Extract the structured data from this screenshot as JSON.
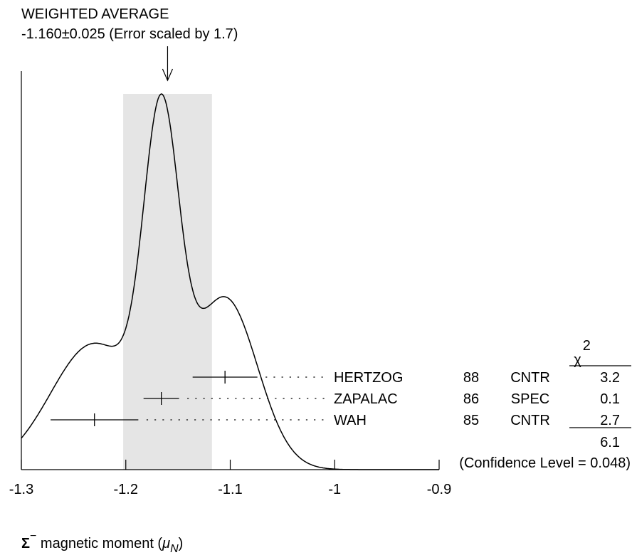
{
  "header": {
    "line1": "WEIGHTED AVERAGE",
    "line2": "-1.160±0.025 (Error scaled by 1.7)"
  },
  "chart_data": {
    "type": "ideogram",
    "xlabel": "Σ⁻ magnetic moment (μN)",
    "xlabel_main": "Σ",
    "xlabel_sup": "−",
    "xlabel_mid": " magnetic moment (",
    "xlabel_mu": "μ",
    "xlabel_sub": "N",
    "xlabel_end": ")",
    "xlim": [
      -1.3,
      -0.9
    ],
    "x_ticks": [
      -1.3,
      -1.2,
      -1.1,
      -1,
      -0.9
    ],
    "x_tick_labels": [
      "-1.3",
      "-1.2",
      "-1.1",
      "-1",
      "-0.9"
    ],
    "weighted_average": {
      "value": -1.16,
      "error": 0.025,
      "scale_factor": 1.7
    },
    "measurements": [
      {
        "name": "HERTZOG",
        "year": "88",
        "technique": "CNTR",
        "value": -1.105,
        "error": 0.031,
        "chi2": "3.2"
      },
      {
        "name": "ZAPALAC",
        "year": "86",
        "technique": "SPEC",
        "value": -1.166,
        "error": 0.017,
        "chi2": "0.1"
      },
      {
        "name": "WAH",
        "year": "85",
        "technique": "CNTR",
        "value": -1.23,
        "error": 0.042,
        "chi2": "2.7"
      }
    ],
    "chi2_header": "χ",
    "chi2_header_sup": "2",
    "chi2_total": "6.1",
    "confidence_level": "(Confidence Level = 0.048)"
  }
}
